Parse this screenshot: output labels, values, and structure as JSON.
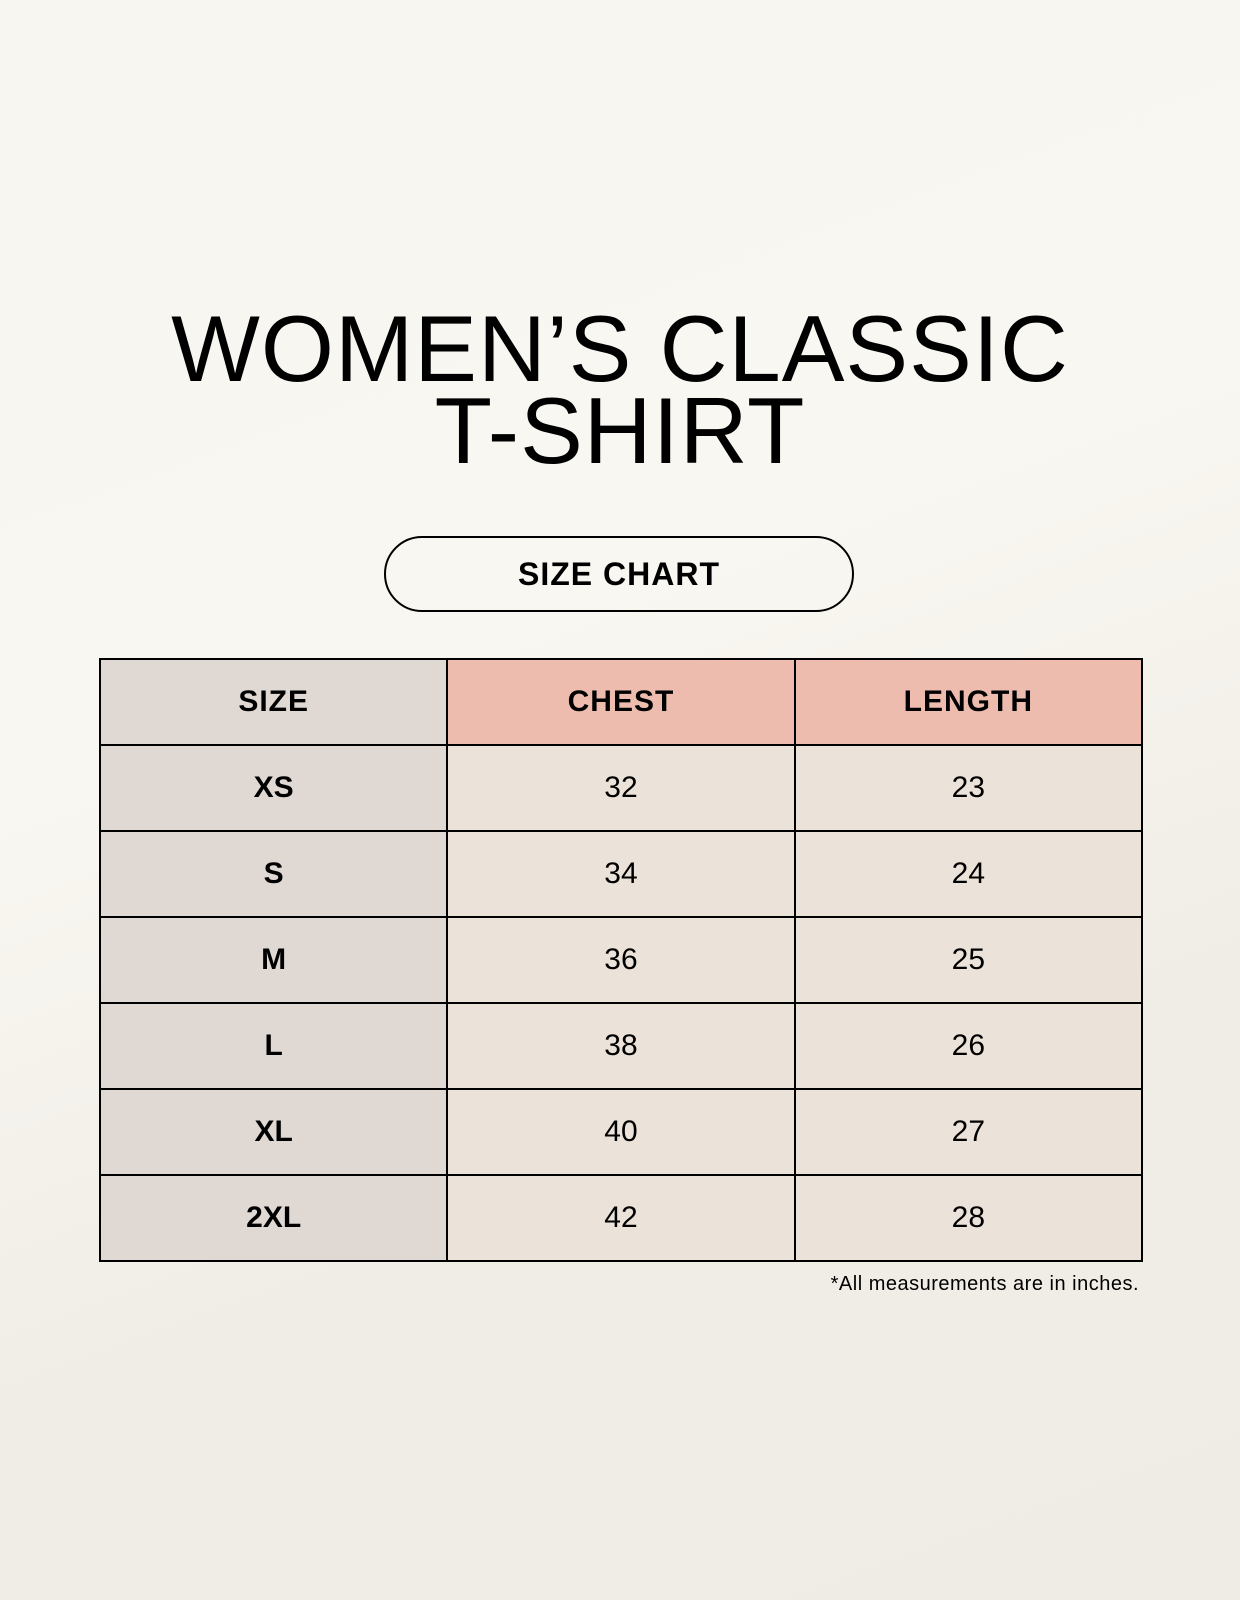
{
  "title": {
    "line1": "WOMEN’S CLASSIC",
    "line2": "T-SHIRT"
  },
  "subtitle": "SIZE CHART",
  "table": {
    "headers": [
      "SIZE",
      "CHEST",
      "LENGTH"
    ],
    "rows": [
      [
        "XS",
        "32",
        "23"
      ],
      [
        "S",
        "34",
        "24"
      ],
      [
        "M",
        "36",
        "25"
      ],
      [
        "L",
        "38",
        "26"
      ],
      [
        "XL",
        "40",
        "27"
      ],
      [
        "2XL",
        "42",
        "28"
      ]
    ]
  },
  "footnote": "*All measurements are in inches.",
  "colors": {
    "size_column": "#e0d8d3",
    "header_accent": "#edbcaf",
    "value_cells": "#ebe3d9"
  }
}
